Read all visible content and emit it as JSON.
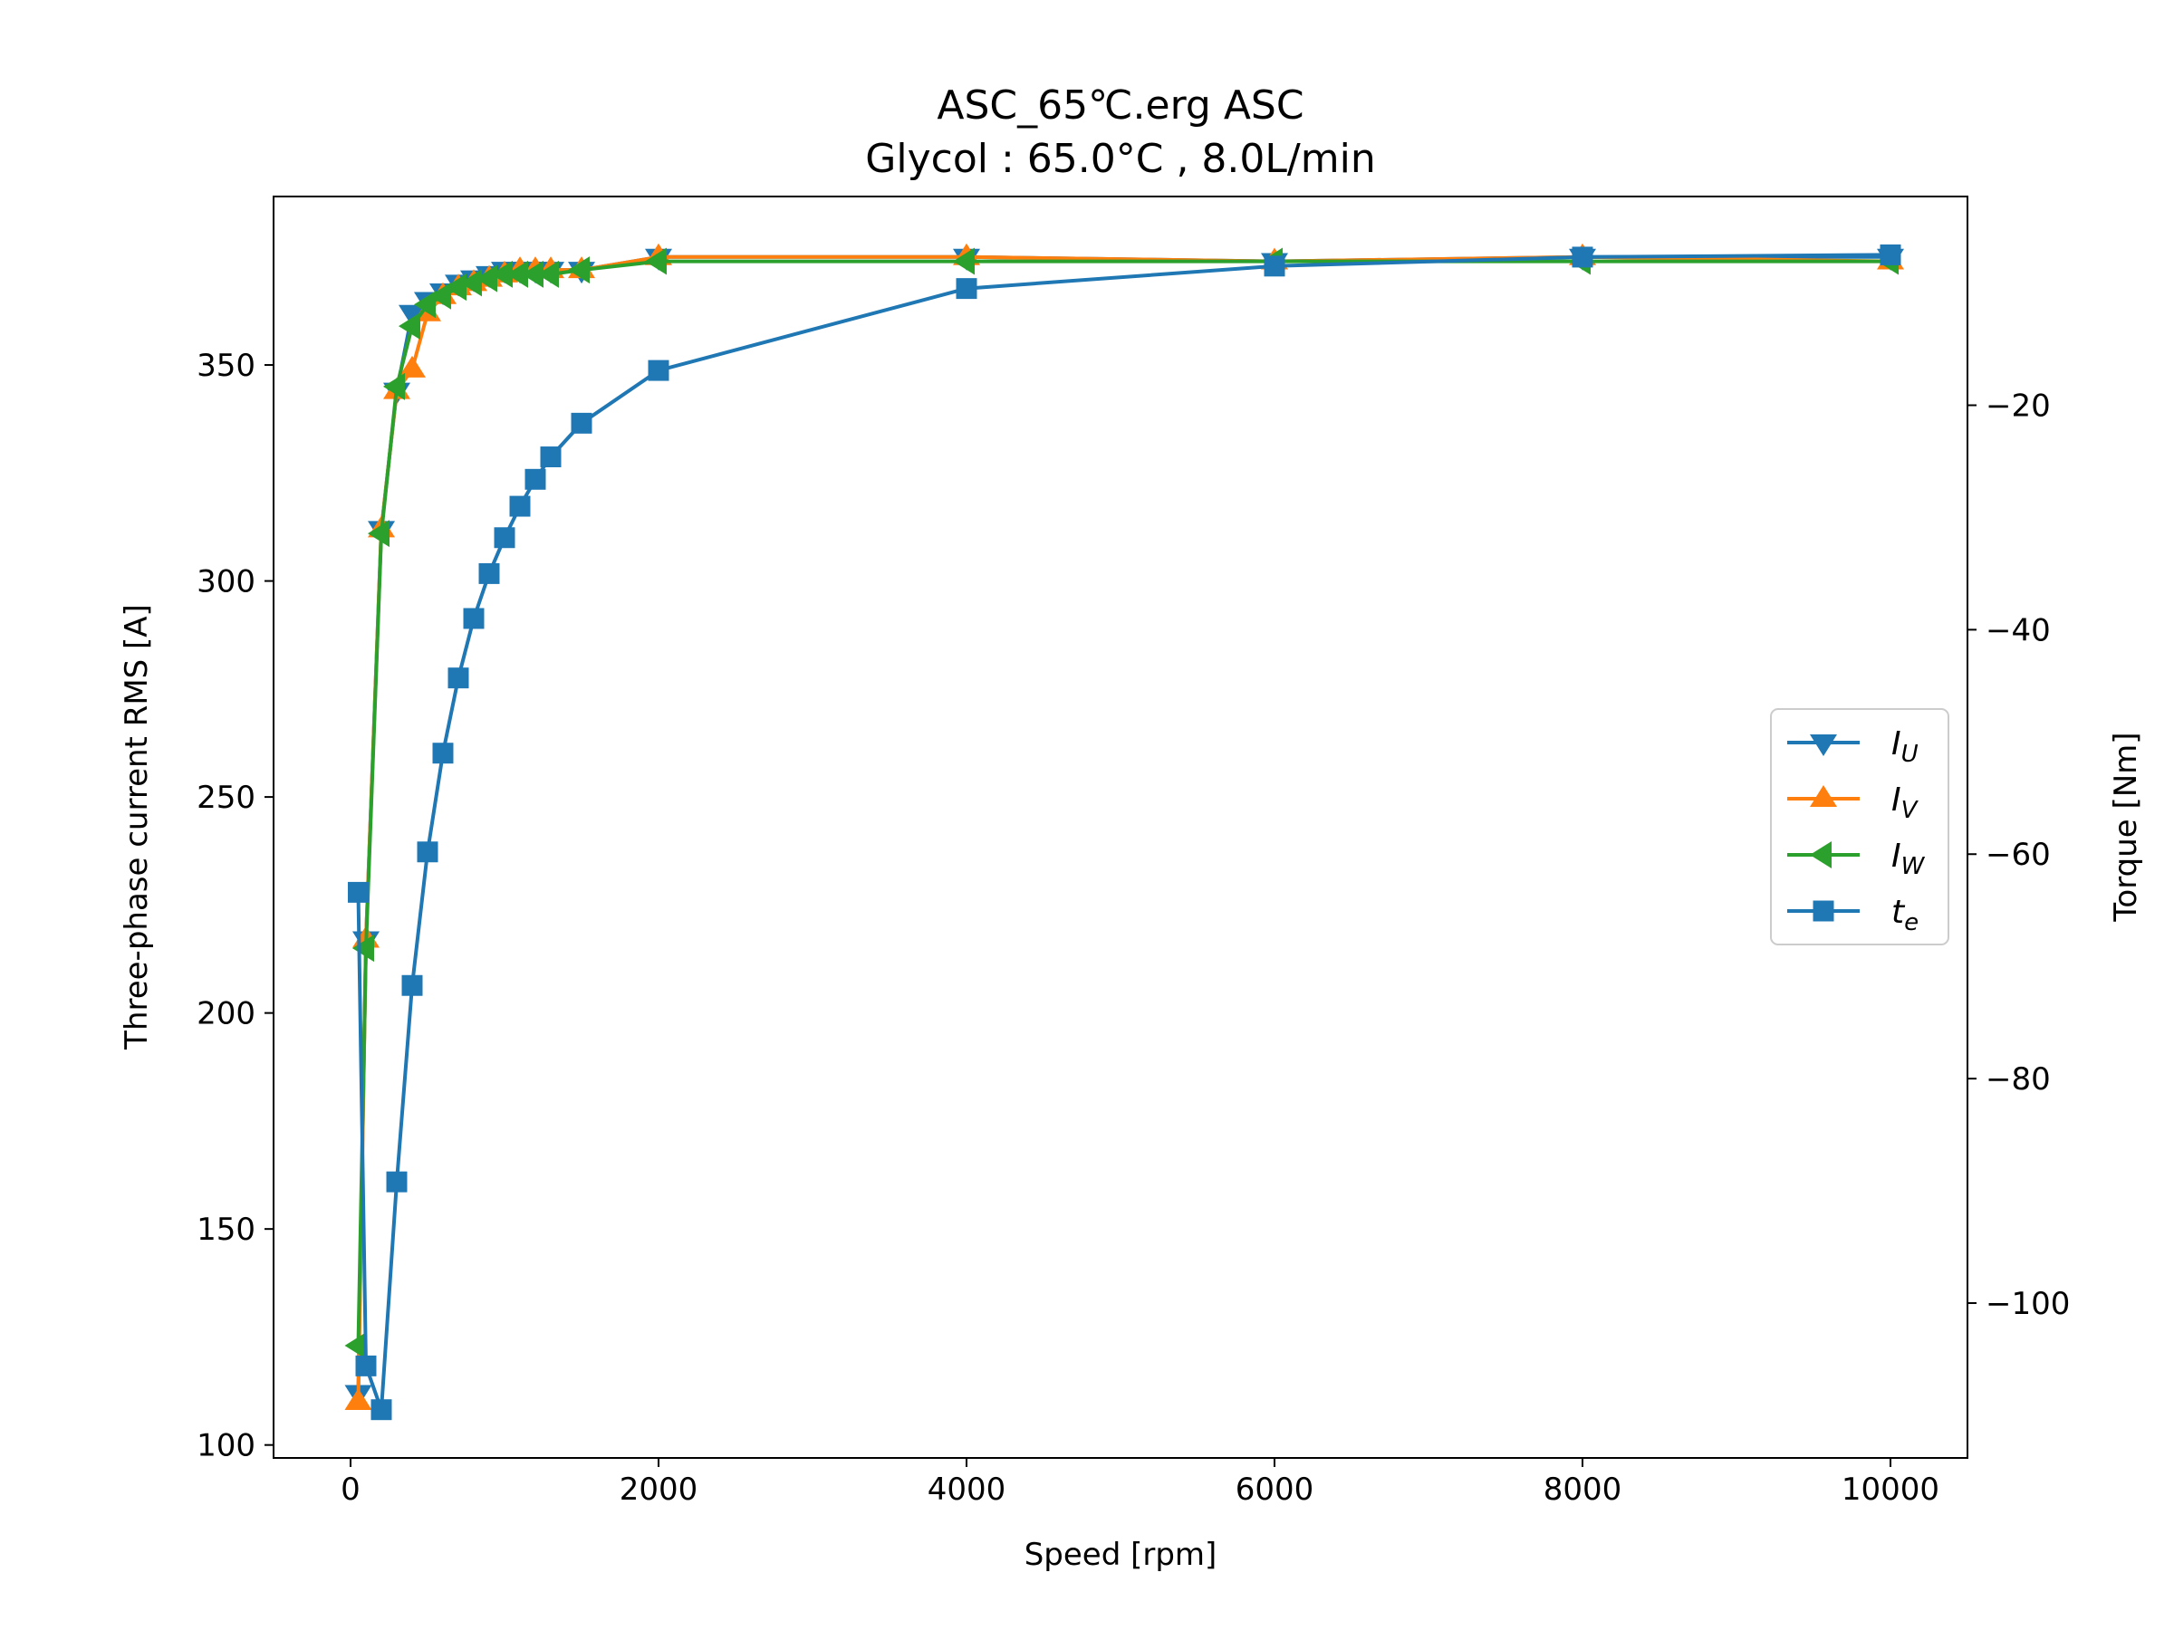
{
  "chart_data": {
    "type": "line",
    "title_line1": "ASC_65℃.erg ASC",
    "title_line2": "Glycol : 65.0°C , 8.0L/min",
    "xlabel": "Speed [rpm]",
    "ylabel_left": "Three-phase current RMS [A]",
    "ylabel_right": "Torque [Nm]",
    "xlim": [
      -500,
      10500
    ],
    "ylim_left": [
      97,
      389
    ],
    "ylim_right": [
      -113.8,
      -1.4
    ],
    "xticks": [
      0,
      2000,
      4000,
      6000,
      8000,
      10000
    ],
    "yticks_left": [
      100,
      150,
      200,
      250,
      300,
      350
    ],
    "yticks_right": [
      -100,
      -80,
      -60,
      -40,
      -20
    ],
    "grid": false,
    "legend_position": "center-right",
    "series": [
      {
        "legend_base": "I",
        "legend_sub": "U",
        "axis": "left",
        "color": "#1f77b4",
        "marker": "triangle-down",
        "x": [
          50,
          100,
          200,
          300,
          400,
          500,
          600,
          700,
          800,
          900,
          1000,
          1100,
          1200,
          1300,
          1500,
          2000,
          4000,
          6000,
          8000,
          10000
        ],
        "y": [
          112,
          217,
          312,
          344,
          362,
          365,
          367,
          369,
          370,
          371,
          372,
          372,
          372,
          372,
          372,
          375,
          375,
          374,
          375,
          375
        ]
      },
      {
        "legend_base": "I",
        "legend_sub": "V",
        "axis": "left",
        "color": "#ff7f0e",
        "marker": "triangle-up",
        "x": [
          50,
          100,
          200,
          300,
          400,
          500,
          600,
          700,
          800,
          900,
          1000,
          1100,
          1200,
          1300,
          1500,
          2000,
          4000,
          6000,
          8000,
          10000
        ],
        "y": [
          110,
          217,
          312,
          344,
          349,
          362,
          366,
          368,
          369,
          370,
          371,
          372,
          372,
          372,
          372,
          375,
          375,
          374,
          375,
          374
        ]
      },
      {
        "legend_base": "I",
        "legend_sub": "W",
        "axis": "left",
        "color": "#2ca02c",
        "marker": "triangle-left",
        "x": [
          50,
          100,
          200,
          300,
          400,
          500,
          600,
          700,
          800,
          900,
          1000,
          1100,
          1200,
          1300,
          1500,
          2000,
          4000,
          6000,
          8000,
          10000
        ],
        "y": [
          123,
          215,
          311,
          345,
          359,
          364,
          366,
          368,
          369,
          370,
          371,
          371,
          371,
          371,
          372,
          374,
          374,
          374,
          374,
          374
        ]
      },
      {
        "legend_base": "t",
        "legend_sub": "e",
        "axis": "right",
        "color": "#1f77b4",
        "marker": "square",
        "x": [
          50,
          100,
          200,
          300,
          400,
          500,
          600,
          700,
          800,
          900,
          1000,
          1100,
          1200,
          1300,
          1500,
          2000,
          4000,
          6000,
          8000,
          10000
        ],
        "y": [
          -63.4,
          -105.6,
          -109.5,
          -89.2,
          -71.7,
          -59.8,
          -51.0,
          -44.3,
          -39.0,
          -35.0,
          -31.8,
          -29.0,
          -26.6,
          -24.6,
          -21.6,
          -16.9,
          -9.6,
          -7.6,
          -6.8,
          -6.6
        ]
      }
    ]
  }
}
